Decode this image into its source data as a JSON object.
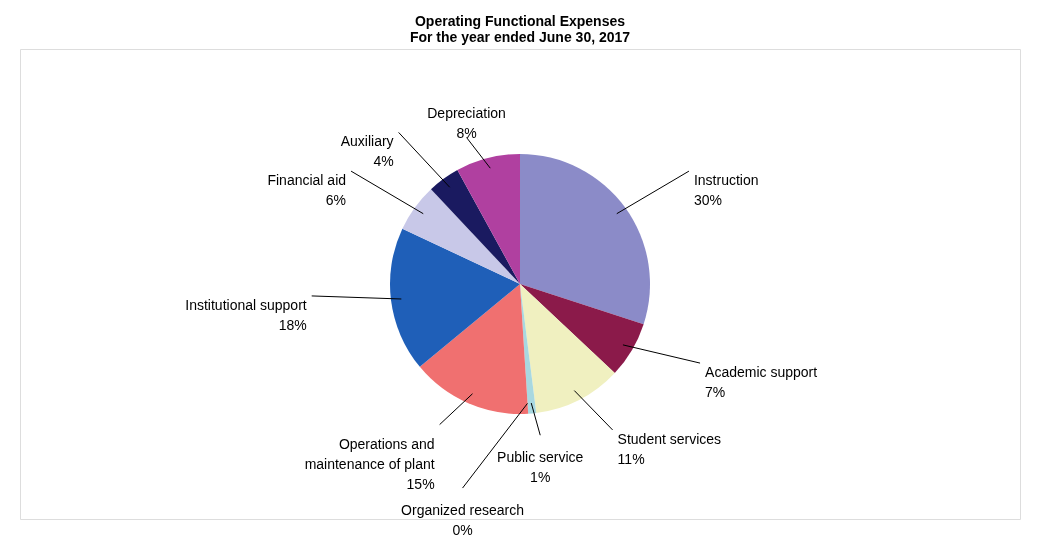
{
  "chart_data": {
    "type": "pie",
    "title": [
      "Operating Functional Expenses",
      "For the year ended June 30, 2017"
    ],
    "categories": [
      "Instruction",
      "Academic support",
      "Student services",
      "Public service",
      "Organized research",
      "Operations and maintenance of plant",
      "Institutional support",
      "Financial aid",
      "Auxiliary",
      "Depreciation"
    ],
    "values": [
      30,
      7,
      11,
      1,
      0,
      15,
      18,
      6,
      4,
      8
    ],
    "value_labels": [
      "30%",
      "7%",
      "11%",
      "1%",
      "0%",
      "15%",
      "18%",
      "6%",
      "4%",
      "8%"
    ],
    "colors": [
      "#8b8bc8",
      "#8b1a4a",
      "#f0f0c0",
      "#a8d8e0",
      "#5a7fa0",
      "#f07070",
      "#1f5fb8",
      "#c8c8e8",
      "#1a1a60",
      "#b040a0"
    ],
    "legend": false
  }
}
